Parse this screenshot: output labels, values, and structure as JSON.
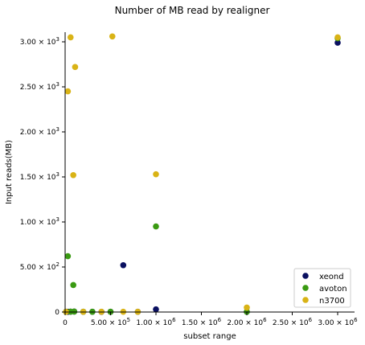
{
  "chart_data": {
    "type": "scatter",
    "title": "Number of MB read by realigner",
    "xlabel": "subset range",
    "ylabel": "Input reads(MB)",
    "xlim": [
      0,
      3100000
    ],
    "ylim": [
      0,
      3100
    ],
    "grid": false,
    "legend_position": "lower-right",
    "x_ticks": [
      {
        "value": 0,
        "label": "0"
      },
      {
        "value": 500000,
        "label": "5.00 × 10^5"
      },
      {
        "value": 1000000,
        "label": "1.00 × 10^6"
      },
      {
        "value": 1500000,
        "label": "1.50 × 10^6"
      },
      {
        "value": 2000000,
        "label": "2.00 × 10^6"
      },
      {
        "value": 2500000,
        "label": "2.50 × 10^6"
      },
      {
        "value": 3000000,
        "label": "3.00 × 10^6"
      }
    ],
    "y_ticks": [
      {
        "value": 0,
        "label": "0"
      },
      {
        "value": 500,
        "label": "5.00 × 10^2"
      },
      {
        "value": 1000,
        "label": "1.00 × 10^3"
      },
      {
        "value": 1500,
        "label": "1.50 × 10^3"
      },
      {
        "value": 2000,
        "label": "2.00 × 10^3"
      },
      {
        "value": 2500,
        "label": "2.50 × 10^3"
      },
      {
        "value": 3000,
        "label": "3.00 × 10^3"
      }
    ],
    "series": [
      {
        "name": "xeond",
        "color": "#0a1060",
        "points": [
          [
            10000,
            3
          ],
          [
            30000,
            3
          ],
          [
            60000,
            4
          ],
          [
            100000,
            5
          ],
          [
            200000,
            3
          ],
          [
            300000,
            3
          ],
          [
            400000,
            2
          ],
          [
            500000,
            3
          ],
          [
            640000,
            520
          ],
          [
            800000,
            3
          ],
          [
            1000000,
            30
          ],
          [
            2000000,
            3
          ],
          [
            3000000,
            2990
          ]
        ]
      },
      {
        "name": "avoton",
        "color": "#3a9a12",
        "points": [
          [
            10000,
            3
          ],
          [
            30000,
            620
          ],
          [
            60000,
            4
          ],
          [
            90000,
            300
          ],
          [
            100000,
            5
          ],
          [
            200000,
            3
          ],
          [
            300000,
            3
          ],
          [
            500000,
            3
          ],
          [
            1000000,
            950
          ],
          [
            2000000,
            3
          ],
          [
            3000000,
            3040
          ]
        ]
      },
      {
        "name": "n3700",
        "color": "#d9b316",
        "points": [
          [
            10000,
            3
          ],
          [
            30000,
            2450
          ],
          [
            60000,
            3050
          ],
          [
            90000,
            1520
          ],
          [
            110000,
            2720
          ],
          [
            200000,
            3
          ],
          [
            400000,
            3
          ],
          [
            520000,
            3060
          ],
          [
            640000,
            3
          ],
          [
            800000,
            3
          ],
          [
            1000000,
            1530
          ],
          [
            2000000,
            50
          ],
          [
            3000000,
            3050
          ]
        ]
      }
    ]
  }
}
